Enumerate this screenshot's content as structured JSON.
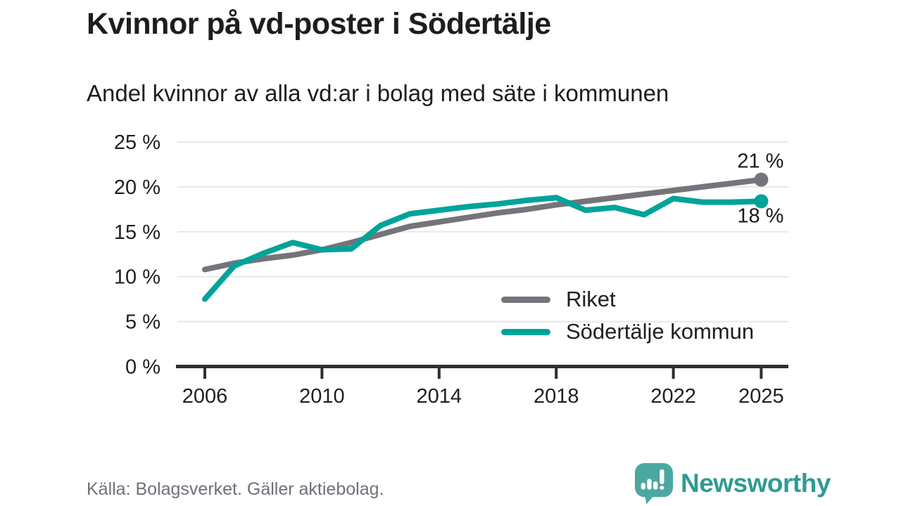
{
  "header": {
    "title": "Kvinnor på vd-poster i Södertälje",
    "subtitle": "Andel kvinnor av alla vd:ar i bolag med säte i kommunen"
  },
  "chart_data": {
    "type": "line",
    "x": [
      2006,
      2007,
      2008,
      2009,
      2010,
      2011,
      2012,
      2013,
      2014,
      2015,
      2016,
      2017,
      2018,
      2019,
      2020,
      2021,
      2022,
      2023,
      2024,
      2025
    ],
    "series": [
      {
        "name": "Riket",
        "color": "#76737A",
        "values": [
          10.8,
          11.5,
          12.0,
          12.4,
          13.0,
          13.8,
          14.7,
          15.6,
          16.1,
          16.6,
          17.1,
          17.5,
          18.0,
          18.4,
          18.8,
          19.2,
          19.6,
          20.0,
          20.4,
          20.8
        ],
        "end_label": "21 %",
        "end_label_position": "above"
      },
      {
        "name": "Södertälje kommun",
        "color": "#00A39A",
        "values": [
          7.5,
          11.2,
          12.6,
          13.8,
          13.0,
          13.1,
          15.7,
          17.0,
          17.4,
          17.8,
          18.1,
          18.5,
          18.8,
          17.4,
          17.7,
          16.9,
          18.7,
          18.3,
          18.3,
          18.4
        ],
        "end_label": "18 %",
        "end_label_position": "below"
      }
    ],
    "xticks": {
      "values": [
        2006,
        2010,
        2014,
        2018,
        2022,
        2025
      ],
      "labels": [
        "2006",
        "2010",
        "2014",
        "2018",
        "2022",
        "2025"
      ]
    },
    "yticks": {
      "values": [
        0,
        5,
        10,
        15,
        20,
        25
      ],
      "labels": [
        "0 %",
        "5 %",
        "10 %",
        "15 %",
        "20 %",
        "25 %"
      ]
    },
    "xlim": [
      2006,
      2025
    ],
    "ylim": [
      0,
      25
    ],
    "grid": true,
    "legend_position": "inside-bottom-right"
  },
  "footer": {
    "source": "Källa: Bolagsverket. Gäller aktiebolag.",
    "brand": "Newsworthy"
  },
  "colors": {
    "accent_teal": "#00A39A",
    "neutral_gray": "#76737A",
    "logo_teal": "#4BA8A0",
    "logo_text_teal": "#2F9B93",
    "axis": "#2E2E2E",
    "gridline": "#E8E8E8",
    "text_dark": "#1D1D1B"
  }
}
